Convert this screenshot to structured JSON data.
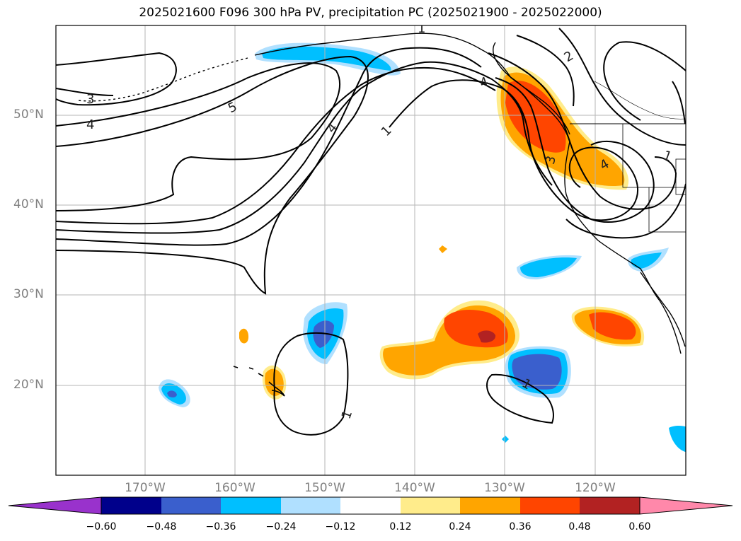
{
  "title": "2025021600 F096 300 hPa PV, precipitation PC (2025021900 - 2025022000)",
  "lat_labels": [
    "50°N",
    "40°N",
    "30°N",
    "20°N"
  ],
  "lon_labels": [
    "170°W",
    "160°W",
    "150°W",
    "140°W",
    "130°W",
    "120°W"
  ],
  "colorbar": {
    "ticks": [
      "−0.60",
      "−0.48",
      "−0.36",
      "−0.24",
      "−0.12",
      "0.12",
      "0.24",
      "0.36",
      "0.48",
      "0.60"
    ],
    "colors": [
      "#9932cc",
      "#00008b",
      "#3a5fcd",
      "#00bfff",
      "#b0e0ff",
      "#ffffff",
      "#ffec8b",
      "#ffa500",
      "#ff4500",
      "#b22222",
      "#ff88aa"
    ]
  },
  "contour_labels": [
    "5",
    "4",
    "4",
    "1",
    "3",
    "4",
    "3",
    "4",
    "2",
    "1",
    "1",
    "1",
    "1"
  ]
}
